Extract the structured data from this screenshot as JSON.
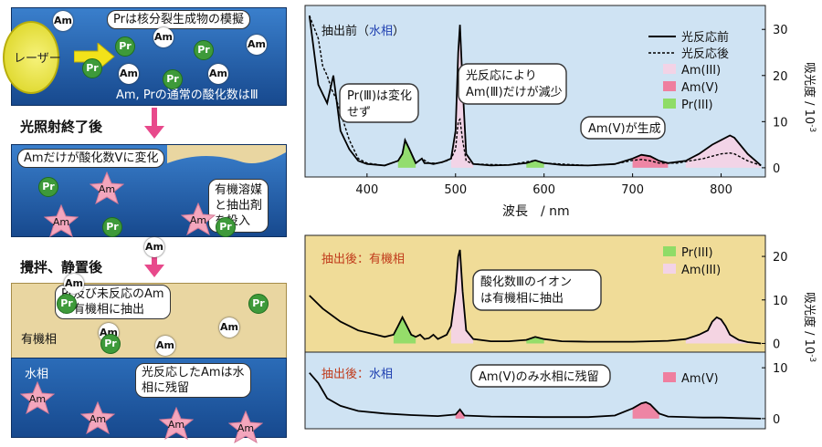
{
  "left": {
    "laser_label": "レーザー",
    "panel1_callout": "Prは核分裂生成物の模擬",
    "panel1_footer": "Am, Prの通常の酸化数はⅢ",
    "step1": "光照射終了後",
    "panel2_callout": "Amだけが酸化数Ⅴに変化",
    "panel2_add_callout_lines": [
      "有機溶媒",
      "と抽出剤",
      "を投入"
    ],
    "step2": "攪拌、静置後",
    "panel3_callout_lines": [
      "Pr及び未反応のAm",
      "は有機相に抽出"
    ],
    "organic_label": "有機相",
    "aqueous_label": "水相",
    "panel4_callout_lines": [
      "光反応したAmは水",
      "相に残留"
    ],
    "am": "Am",
    "pr": "Pr",
    "colors": {
      "aqueous": "#1f5fa6",
      "organic": "#e9d6a1",
      "pink": "#e8498b",
      "pr_green": "#3e9a3a",
      "am_star": "#f4a6bd"
    }
  },
  "top_chart": {
    "title_prefix": "抽出前（",
    "title_phase": "水相",
    "title_suffix": "）",
    "legend_before": "光反応前",
    "legend_after": "光反応後",
    "legend_am3": "Am(III)",
    "legend_am5": "Am(V)",
    "legend_pr3": "Pr(III)",
    "callout_pr_lines": [
      "Pr(Ⅲ)は変化",
      "せず"
    ],
    "callout_am_lines": [
      "光反応により",
      "Am(Ⅲ)だけが減少"
    ],
    "callout_am5": "Am(V)が生成",
    "xlabel": "波長　/ nm",
    "ylabel": "吸光度 / 10",
    "ylabel_exp": "-3",
    "xticks": [
      "400",
      "500",
      "600",
      "700",
      "800"
    ],
    "yticks": [
      "0",
      "10",
      "20",
      "30"
    ]
  },
  "mid_chart": {
    "title": "抽出後：有機相",
    "legend_pr3": "Pr(III)",
    "legend_am3": "Am(III)",
    "callout_lines": [
      "酸化数Ⅲのイオン",
      "は有機相に抽出"
    ],
    "yticks": [
      "0",
      "10",
      "20"
    ]
  },
  "bot_chart": {
    "title_prefix": "抽出後：",
    "title_phase": "水相",
    "legend_am5": "Am(V)",
    "callout": "Am(V)のみ水相に残留",
    "yticks": [
      "0",
      "10"
    ]
  },
  "chart_data": [
    {
      "type": "line",
      "title": "抽出前（水相）",
      "xlabel": "波長 / nm",
      "ylabel": "吸光度 / 10^-3",
      "xlim": [
        330,
        850
      ],
      "ylim": [
        -2,
        34
      ],
      "series": [
        {
          "name": "光反応前",
          "x": [
            335,
            345,
            355,
            362,
            370,
            380,
            390,
            400,
            420,
            435,
            440,
            443,
            448,
            455,
            462,
            465,
            470,
            475,
            480,
            485,
            495,
            500,
            503,
            505,
            508,
            512,
            520,
            540,
            560,
            580,
            590,
            600,
            620,
            650,
            680,
            700,
            710,
            720,
            730,
            740,
            760,
            775,
            790,
            800,
            810,
            815,
            830,
            845
          ],
          "y": [
            33,
            18,
            14,
            20,
            8,
            4,
            1.5,
            0.8,
            0.5,
            1.5,
            3,
            6,
            4,
            1,
            2,
            1,
            1,
            0.8,
            1,
            1.2,
            2,
            8,
            25,
            31,
            18,
            3,
            0.8,
            0.5,
            0.6,
            1,
            1.6,
            1,
            0.6,
            0.5,
            0.8,
            2,
            2.8,
            2.5,
            1.5,
            1,
            1.5,
            3,
            5,
            6,
            7,
            6.5,
            3,
            0.5
          ]
        },
        {
          "name": "光反応後",
          "x": [
            335,
            345,
            350,
            355,
            360,
            365,
            370,
            380,
            390,
            400,
            420,
            435,
            440,
            443,
            448,
            455,
            462,
            470,
            480,
            490,
            495,
            500,
            503,
            505,
            508,
            512,
            520,
            560,
            590,
            600,
            650,
            680,
            700,
            710,
            720,
            730,
            750,
            780,
            800,
            810,
            815,
            830,
            845
          ],
          "y": [
            33,
            28,
            22,
            20,
            17,
            15,
            12,
            6,
            2,
            1,
            0.5,
            1.5,
            3,
            6,
            4,
            1,
            2,
            1,
            1,
            1.5,
            2,
            4,
            10,
            10.5,
            6,
            1.5,
            0.8,
            0.6,
            1.6,
            1,
            0.5,
            0.8,
            1.6,
            1.8,
            1.5,
            1,
            1,
            2,
            3,
            3.2,
            3,
            1.5,
            0.5
          ]
        }
      ],
      "shaded_regions": [
        {
          "name": "Pr(III)",
          "x": [
            430,
            455
          ]
        },
        {
          "name": "Pr(III)",
          "x": [
            575,
            605
          ]
        },
        {
          "name": "Am(III)",
          "x": [
            495,
            520
          ]
        },
        {
          "name": "Am(III)",
          "x": [
            760,
            845
          ]
        },
        {
          "name": "Am(V)",
          "x": [
            690,
            740
          ]
        }
      ]
    },
    {
      "type": "line",
      "title": "抽出後：有機相",
      "xlim": [
        330,
        850
      ],
      "ylim": [
        -2,
        24
      ],
      "series": [
        {
          "x": [
            335,
            350,
            370,
            390,
            410,
            420,
            430,
            435,
            440,
            445,
            450,
            455,
            460,
            465,
            470,
            475,
            480,
            485,
            490,
            495,
            500,
            503,
            505,
            508,
            512,
            520,
            540,
            560,
            580,
            590,
            600,
            620,
            650,
            700,
            740,
            760,
            775,
            785,
            790,
            795,
            800,
            805,
            810,
            820,
            830,
            845
          ],
          "y": [
            11,
            8,
            5,
            3,
            2,
            1.5,
            2,
            4,
            6,
            4,
            2,
            1.5,
            2,
            1,
            1.2,
            2,
            1,
            1.5,
            2,
            4,
            12,
            20,
            21.5,
            12,
            3,
            1,
            0.5,
            0.5,
            0.8,
            1.5,
            1,
            0.5,
            0.4,
            0.4,
            0.6,
            1,
            2,
            3,
            5,
            6,
            5.5,
            4,
            2,
            0.8,
            0.3,
            0
          ]
        }
      ],
      "shaded_regions": [
        {
          "name": "Pr(III)",
          "x": [
            430,
            455
          ]
        },
        {
          "name": "Pr(III)",
          "x": [
            575,
            605
          ]
        },
        {
          "name": "Am(III)",
          "x": [
            495,
            520
          ]
        },
        {
          "name": "Am(III)",
          "x": [
            760,
            845
          ]
        }
      ]
    },
    {
      "type": "line",
      "title": "抽出後：水相",
      "xlim": [
        330,
        850
      ],
      "ylim": [
        -2,
        12
      ],
      "series": [
        {
          "x": [
            335,
            345,
            355,
            370,
            390,
            420,
            450,
            480,
            500,
            505,
            510,
            540,
            600,
            650,
            680,
            700,
            710,
            715,
            720,
            730,
            740,
            780,
            800,
            820,
            845
          ],
          "y": [
            9,
            7,
            4,
            2.5,
            1.5,
            1,
            0.7,
            0.5,
            0.8,
            1.8,
            0.6,
            0.4,
            0.3,
            0.3,
            0.6,
            2,
            3,
            3.2,
            2.8,
            1,
            0.4,
            0.2,
            0.2,
            0.1,
            0
          ]
        }
      ],
      "shaded_regions": [
        {
          "name": "Am(V)",
          "x": [
            500,
            512
          ]
        },
        {
          "name": "Am(V)",
          "x": [
            695,
            735
          ]
        }
      ]
    }
  ]
}
